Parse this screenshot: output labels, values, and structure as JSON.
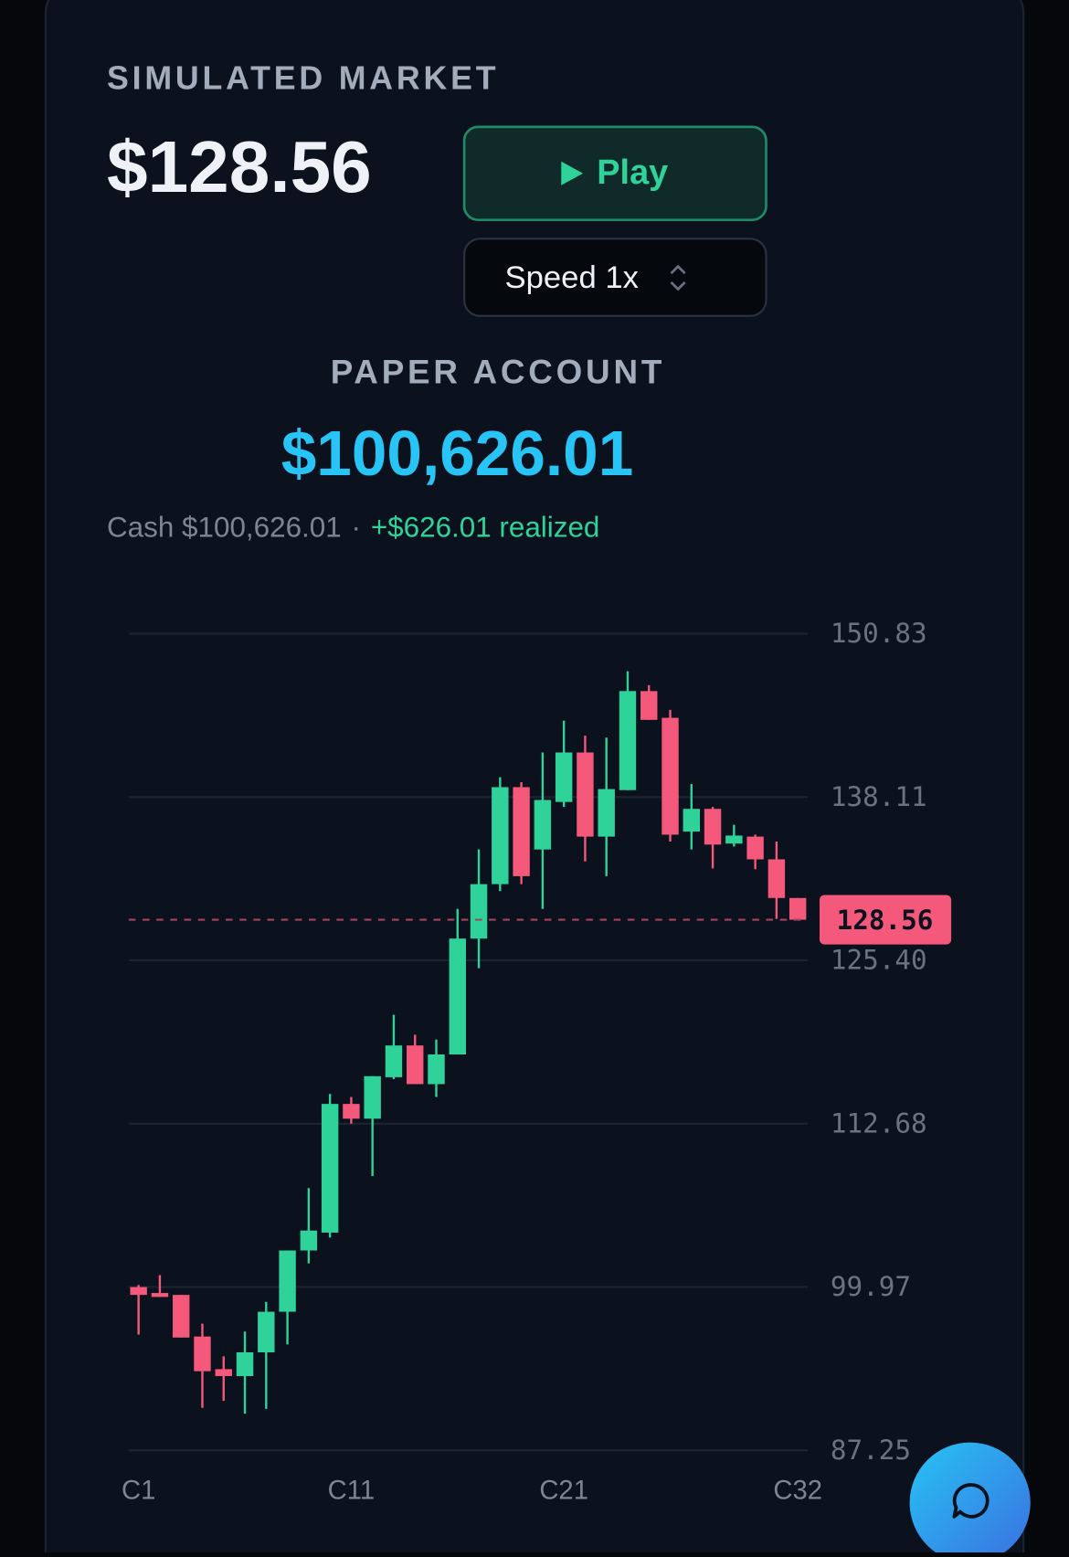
{
  "header": {
    "label": "SIMULATED MARKET",
    "price": "$128.56",
    "play": "Play",
    "speed": "Speed 1x"
  },
  "account": {
    "label": "PAPER ACCOUNT",
    "equity": "$100,626.01",
    "cash": "Cash $100,626.01",
    "separator": "·",
    "realized": "+$626.01 realized"
  },
  "chart_data": {
    "type": "candlestick",
    "categories": [
      "C1",
      null,
      null,
      null,
      null,
      null,
      null,
      null,
      null,
      null,
      "C11",
      null,
      null,
      null,
      null,
      null,
      null,
      null,
      null,
      null,
      "C21",
      null,
      null,
      null,
      null,
      null,
      null,
      null,
      null,
      null,
      null,
      "C32"
    ],
    "open": [
      99.96,
      99.5,
      99.35,
      96.11,
      93.57,
      93.03,
      94.88,
      98.04,
      102.81,
      104.2,
      114.22,
      113.07,
      116.3,
      118.77,
      115.76,
      118.07,
      127.09,
      131.33,
      138.88,
      134.03,
      137.73,
      141.58,
      135.03,
      138.65,
      146.36,
      144.28,
      135.42,
      137.19,
      134.49,
      135.03,
      133.26,
      130.25
    ],
    "high": [
      100.12,
      100.89,
      99.35,
      97.11,
      94.57,
      96.5,
      98.81,
      102.81,
      107.67,
      114.99,
      114.76,
      116.38,
      121.16,
      119.61,
      119.23,
      129.4,
      134.03,
      139.65,
      139.27,
      141.58,
      144.05,
      142.89,
      142.74,
      147.9,
      146.82,
      144.9,
      139.12,
      137.34,
      135.95,
      135.18,
      134.65,
      130.25
    ],
    "low": [
      96.26,
      99.19,
      96.03,
      90.56,
      91.1,
      90.1,
      90.48,
      95.49,
      101.81,
      103.82,
      112.68,
      108.6,
      116.15,
      115.76,
      114.76,
      118.07,
      124.78,
      130.79,
      131.33,
      129.4,
      137.34,
      133.1,
      131.95,
      138.65,
      144.12,
      134.65,
      134.03,
      132.56,
      134.26,
      132.49,
      128.63,
      128.56
    ],
    "close": [
      99.35,
      99.19,
      96.03,
      93.41,
      93.03,
      94.88,
      98.04,
      102.81,
      104.36,
      114.22,
      113.07,
      116.38,
      118.77,
      115.76,
      118.07,
      127.09,
      131.33,
      138.88,
      131.95,
      137.88,
      141.58,
      135.03,
      138.73,
      146.36,
      144.12,
      135.18,
      137.19,
      134.41,
      135.11,
      133.26,
      130.25,
      128.56
    ],
    "up_color": "#2fd39a",
    "down_color": "#f4587a",
    "ylim": [
      87.25,
      150.83
    ],
    "yticks": [
      87.25,
      99.97,
      112.68,
      {
        "value": 125.4,
        "label": "125.40"
      },
      138.11,
      150.83
    ],
    "grid": true,
    "last_price": 128.56
  }
}
